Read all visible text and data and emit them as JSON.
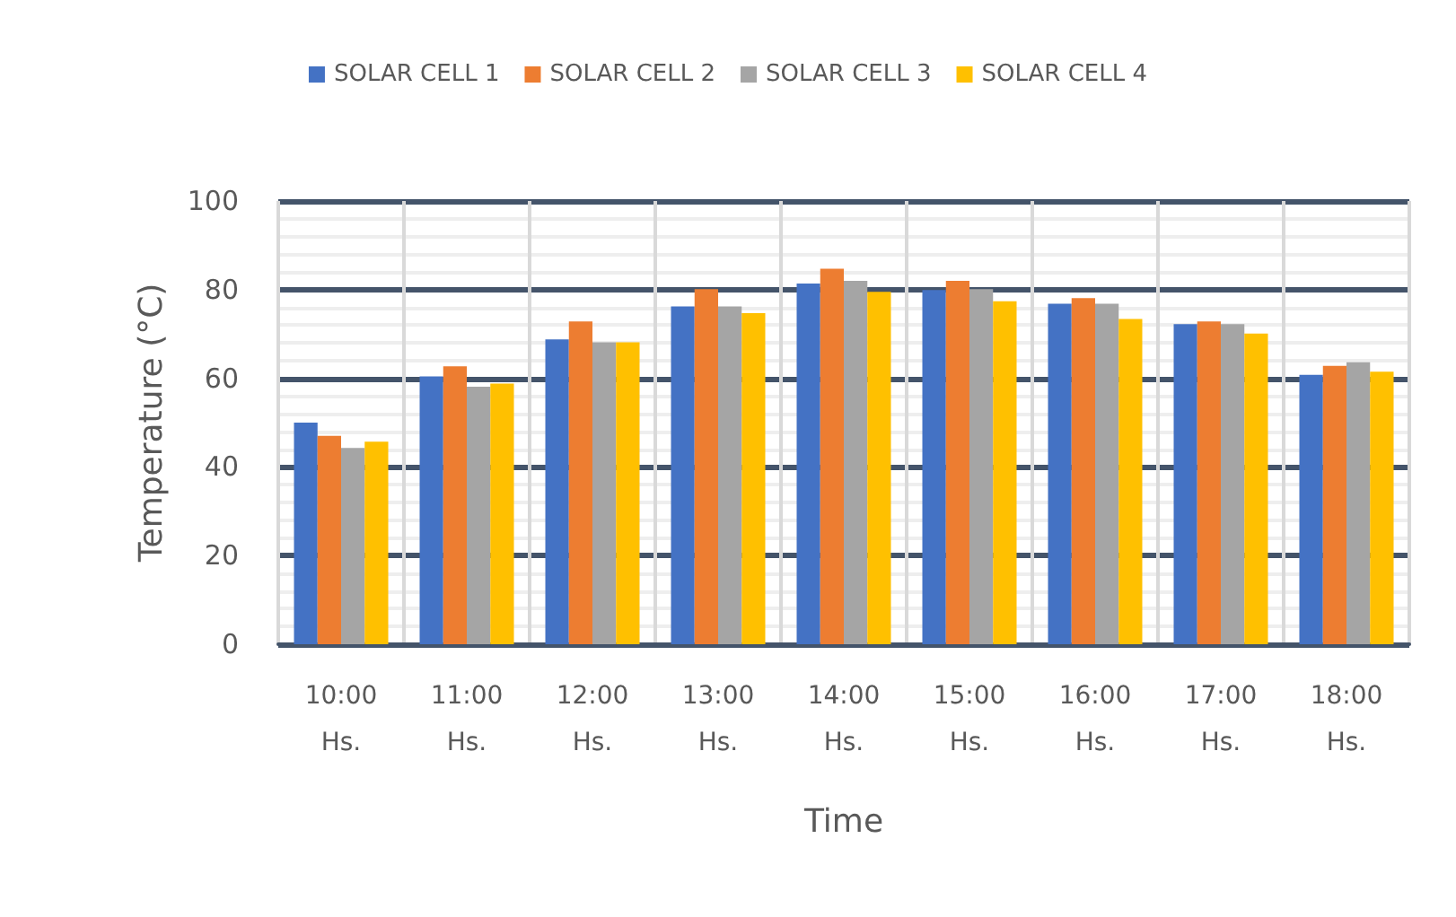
{
  "chart_data": {
    "type": "bar",
    "xlabel": "Time",
    "ylabel": "Temperature (°C)",
    "categories": [
      "10:00 Hs.",
      "11:00 Hs.",
      "12:00 Hs.",
      "13:00 Hs.",
      "14:00 Hs.",
      "15:00 Hs.",
      "16:00 Hs.",
      "17:00 Hs.",
      "18:00 Hs."
    ],
    "series": [
      {
        "name": "SOLAR CELL 1",
        "color": "#4472c4",
        "values": [
          50,
          60.4,
          68.8,
          76.2,
          81.4,
          79.9,
          76.8,
          72.2,
          60.8
        ]
      },
      {
        "name": "SOLAR CELL 2",
        "color": "#ed7d31",
        "values": [
          47,
          62.7,
          72.8,
          80.1,
          84.7,
          82,
          78.1,
          72.8,
          62.8
        ]
      },
      {
        "name": "SOLAR CELL 3",
        "color": "#a5a5a5",
        "values": [
          44.3,
          58.1,
          68.1,
          76.2,
          82,
          80.1,
          76.8,
          72.2,
          63.6
        ]
      },
      {
        "name": "SOLAR CELL 4",
        "color": "#ffc000",
        "values": [
          45.7,
          58.8,
          68.1,
          74.7,
          79.5,
          77.4,
          73.4,
          70.1,
          61.5
        ]
      }
    ],
    "ylim": [
      0,
      100
    ],
    "yticks": [
      0,
      20,
      40,
      60,
      80,
      100
    ],
    "grid": true,
    "legend": "top"
  }
}
